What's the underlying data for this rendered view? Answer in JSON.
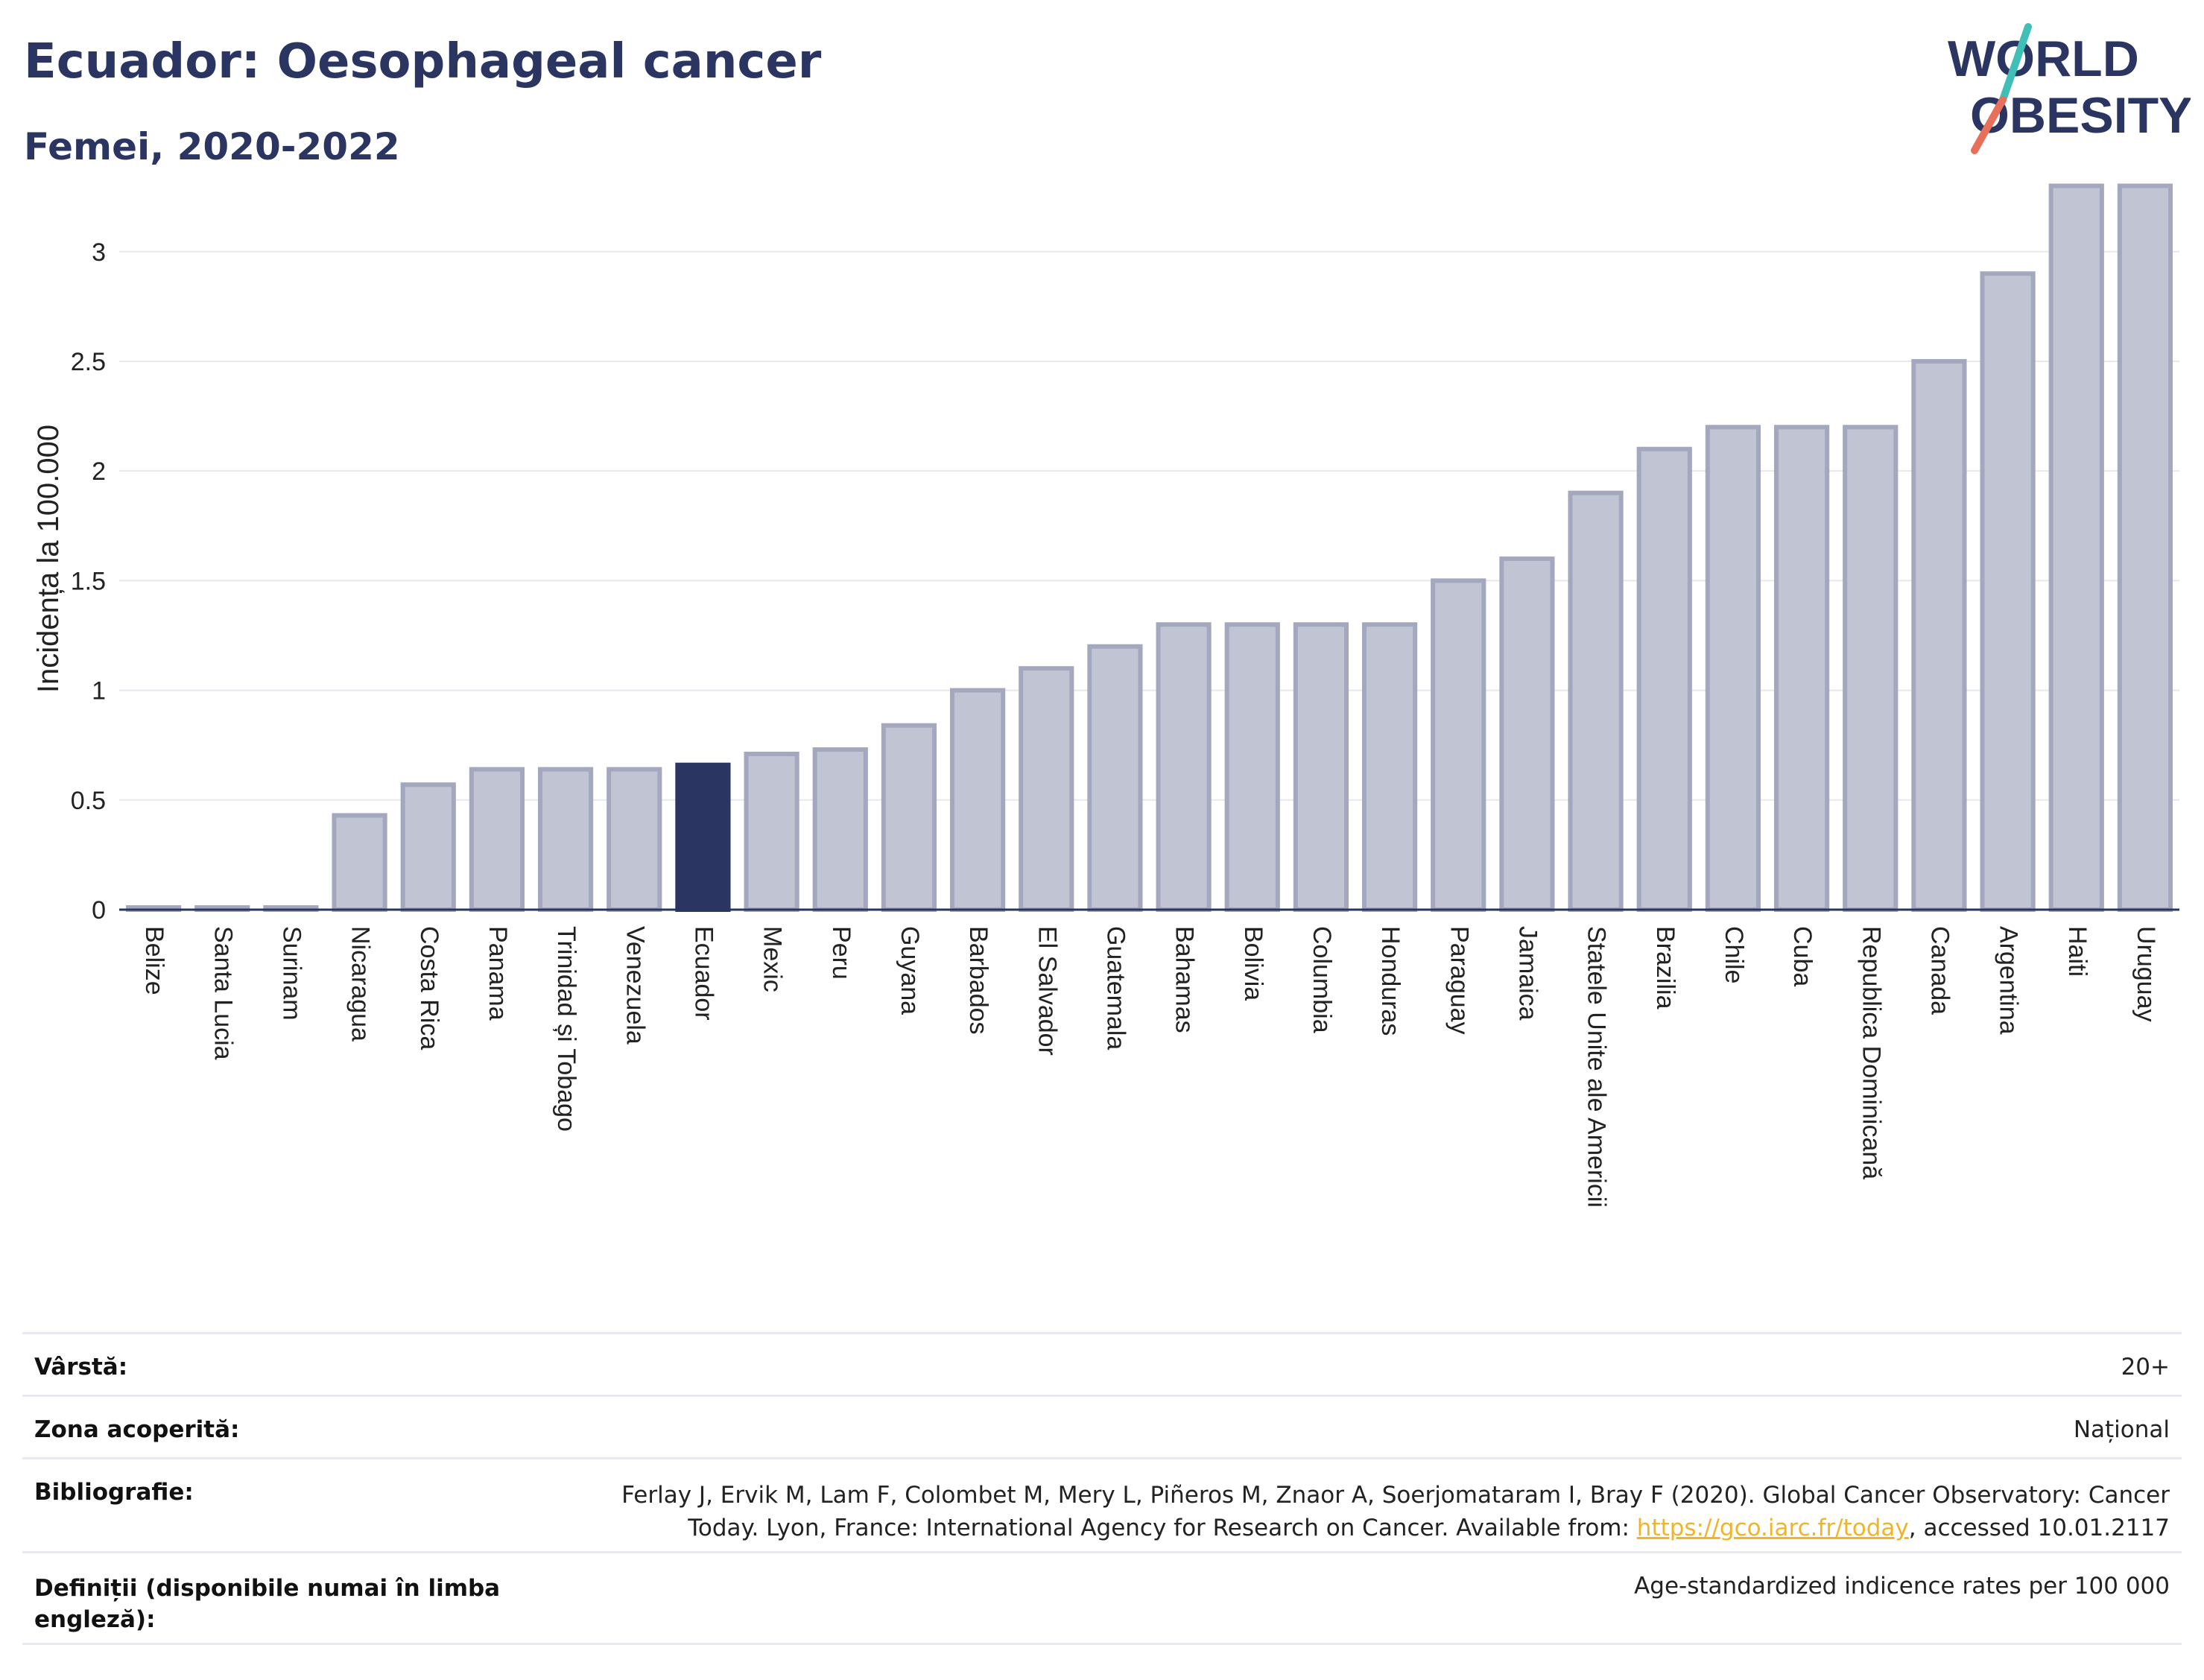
{
  "header": {
    "title": "Ecuador: Oesophageal cancer",
    "subtitle": "Femei, 2020-2022"
  },
  "logo": {
    "line1": "WORLD",
    "line2": "OBESITY",
    "slash_colors": [
      "#3fbfb6",
      "#e8705a"
    ]
  },
  "colors": {
    "highlight": "#2b3562",
    "bar": "#c0c4d3",
    "bar_border": "#a3a8bf",
    "text": "#2b3562",
    "link": "#f0b429"
  },
  "chart_data": {
    "type": "bar",
    "title": "",
    "ylabel": "Incidența la 100.000",
    "xlabel": "",
    "ylim": [
      0,
      3.4
    ],
    "yticks": [
      0,
      0.5,
      1,
      1.5,
      2,
      2.5,
      3
    ],
    "ytick_labels": [
      "0",
      "0.5",
      "1",
      "1.5",
      "2",
      "2.5",
      "3"
    ],
    "grid": true,
    "highlight": "Ecuador",
    "categories": [
      "Belize",
      "Santa Lucia",
      "Surinam",
      "Nicaragua",
      "Costa Rica",
      "Panama",
      "Trinidad și Tobago",
      "Venezuela",
      "Ecuador",
      "Mexic",
      "Peru",
      "Guyana",
      "Barbados",
      "El Salvador",
      "Guatemala",
      "Bahamas",
      "Bolivia",
      "Columbia",
      "Honduras",
      "Paraguay",
      "Jamaica",
      "Statele Unite ale Americii",
      "Brazilia",
      "Chile",
      "Cuba",
      "Republica Dominicană",
      "Canada",
      "Argentina",
      "Haiti",
      "Uruguay"
    ],
    "values": [
      0.01,
      0.01,
      0.01,
      0.43,
      0.57,
      0.64,
      0.64,
      0.64,
      0.66,
      0.71,
      0.73,
      0.84,
      1.0,
      1.1,
      1.2,
      1.3,
      1.3,
      1.3,
      1.3,
      1.5,
      1.6,
      1.9,
      2.1,
      2.2,
      2.2,
      2.2,
      2.5,
      2.9,
      3.3,
      3.3
    ]
  },
  "meta": {
    "age_label": "Vârstă:",
    "age_value": "20+",
    "area_label": "Zona acoperită:",
    "area_value": "Național",
    "bib_label": "Bibliografie:",
    "bib_line1": "Ferlay J, Ervik M, Lam F, Colombet M, Mery L, Piñeros M, Znaor A, Soerjomataram I, Bray F (2020). Global Cancer Observatory: Cancer",
    "bib_line2_pre": "Today. Lyon, France: International Agency for Research on Cancer. Available from: ",
    "bib_link": "https://gco.iarc.fr/today",
    "bib_line2_post": ", accessed 10.01.2117",
    "def_label": "Definiții (disponibile numai în limba engleză):",
    "def_value": "Age-standardized indicence rates per 100 000"
  }
}
